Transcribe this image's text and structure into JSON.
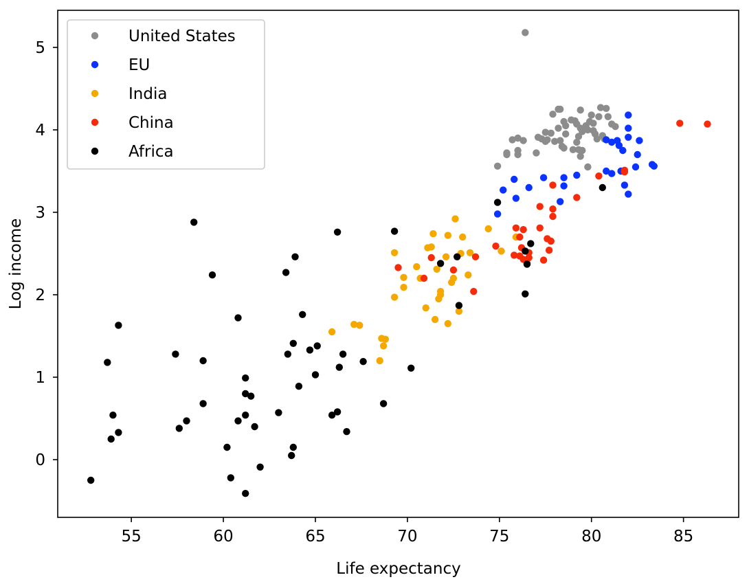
{
  "chart_data": {
    "type": "scatter",
    "title": "",
    "xlabel": "Life expectancy",
    "ylabel": "Log income",
    "xlim": [
      51,
      88
    ],
    "ylim": [
      -0.7,
      5.45
    ],
    "xticks": [
      55,
      60,
      65,
      70,
      75,
      80,
      85
    ],
    "yticks": [
      0,
      1,
      2,
      3,
      4,
      5
    ],
    "grid": false,
    "legend_position": "top-left",
    "series": [
      {
        "name": "United States",
        "color": "#8c8c8c",
        "points": [
          [
            76.4,
            5.18
          ],
          [
            80.5,
            4.27
          ],
          [
            80.8,
            4.26
          ],
          [
            78.2,
            4.25
          ],
          [
            78.3,
            4.25
          ],
          [
            79.4,
            4.24
          ],
          [
            77.9,
            4.19
          ],
          [
            80.0,
            4.18
          ],
          [
            80.4,
            4.16
          ],
          [
            80.9,
            4.16
          ],
          [
            78.9,
            4.12
          ],
          [
            79.1,
            4.11
          ],
          [
            78.5,
            4.1
          ],
          [
            79.9,
            4.1
          ],
          [
            80.1,
            4.08
          ],
          [
            81.1,
            4.07
          ],
          [
            79.2,
            4.07
          ],
          [
            78.6,
            4.05
          ],
          [
            79.7,
            4.05
          ],
          [
            81.3,
            4.04
          ],
          [
            79.4,
            4.02
          ],
          [
            78.2,
            4.02
          ],
          [
            79.8,
            4.0
          ],
          [
            80.1,
            3.99
          ],
          [
            79.5,
            3.98
          ],
          [
            77.5,
            3.97
          ],
          [
            77.8,
            3.96
          ],
          [
            78.6,
            3.95
          ],
          [
            80.2,
            3.95
          ],
          [
            80.6,
            3.93
          ],
          [
            79.3,
            3.92
          ],
          [
            77.1,
            3.91
          ],
          [
            76.0,
            3.9
          ],
          [
            77.3,
            3.89
          ],
          [
            77.6,
            3.88
          ],
          [
            80.3,
            3.89
          ],
          [
            80.7,
            3.89
          ],
          [
            75.7,
            3.88
          ],
          [
            76.3,
            3.87
          ],
          [
            78.3,
            3.87
          ],
          [
            78.0,
            3.86
          ],
          [
            77.5,
            3.86
          ],
          [
            79.2,
            3.85
          ],
          [
            78.4,
            3.8
          ],
          [
            78.5,
            3.78
          ],
          [
            79.0,
            3.76
          ],
          [
            79.3,
            3.76
          ],
          [
            76.0,
            3.75
          ],
          [
            79.5,
            3.75
          ],
          [
            75.4,
            3.72
          ],
          [
            75.4,
            3.7
          ],
          [
            76.0,
            3.7
          ],
          [
            77.0,
            3.72
          ],
          [
            79.4,
            3.68
          ],
          [
            74.9,
            3.56
          ],
          [
            79.8,
            3.55
          ]
        ]
      },
      {
        "name": "EU",
        "color": "#0a33ff",
        "points": [
          [
            82.0,
            4.18
          ],
          [
            82.0,
            4.02
          ],
          [
            82.0,
            3.91
          ],
          [
            81.4,
            3.87
          ],
          [
            80.8,
            3.88
          ],
          [
            81.1,
            3.85
          ],
          [
            82.6,
            3.87
          ],
          [
            81.5,
            3.81
          ],
          [
            81.7,
            3.75
          ],
          [
            82.5,
            3.7
          ],
          [
            83.3,
            3.58
          ],
          [
            83.4,
            3.56
          ],
          [
            82.4,
            3.55
          ],
          [
            80.8,
            3.5
          ],
          [
            81.1,
            3.47
          ],
          [
            81.6,
            3.5
          ],
          [
            79.2,
            3.45
          ],
          [
            77.4,
            3.42
          ],
          [
            78.5,
            3.42
          ],
          [
            75.8,
            3.4
          ],
          [
            78.5,
            3.32
          ],
          [
            76.6,
            3.3
          ],
          [
            81.8,
            3.33
          ],
          [
            75.2,
            3.27
          ],
          [
            75.9,
            3.17
          ],
          [
            78.3,
            3.13
          ],
          [
            82.0,
            3.22
          ],
          [
            74.9,
            2.98
          ]
        ]
      },
      {
        "name": "India",
        "color": "#f5a800",
        "points": [
          [
            72.6,
            2.92
          ],
          [
            74.4,
            2.8
          ],
          [
            71.4,
            2.74
          ],
          [
            72.2,
            2.72
          ],
          [
            73.0,
            2.7
          ],
          [
            75.9,
            2.7
          ],
          [
            71.3,
            2.58
          ],
          [
            71.1,
            2.57
          ],
          [
            69.3,
            2.51
          ],
          [
            73.4,
            2.51
          ],
          [
            72.9,
            2.5
          ],
          [
            72.1,
            2.46
          ],
          [
            75.1,
            2.53
          ],
          [
            70.5,
            2.34
          ],
          [
            71.6,
            2.31
          ],
          [
            73.3,
            2.24
          ],
          [
            69.8,
            2.21
          ],
          [
            70.7,
            2.2
          ],
          [
            72.5,
            2.2
          ],
          [
            72.4,
            2.15
          ],
          [
            69.8,
            2.09
          ],
          [
            71.8,
            2.04
          ],
          [
            71.8,
            2.0
          ],
          [
            69.3,
            1.97
          ],
          [
            71.7,
            1.95
          ],
          [
            71.0,
            1.84
          ],
          [
            72.8,
            1.8
          ],
          [
            71.5,
            1.7
          ],
          [
            72.2,
            1.65
          ],
          [
            67.1,
            1.64
          ],
          [
            67.4,
            1.63
          ],
          [
            65.9,
            1.55
          ],
          [
            68.6,
            1.47
          ],
          [
            68.8,
            1.46
          ],
          [
            68.7,
            1.38
          ],
          [
            68.5,
            1.2
          ]
        ]
      },
      {
        "name": "China",
        "color": "#f52b0a",
        "points": [
          [
            84.8,
            4.08
          ],
          [
            86.3,
            4.07
          ],
          [
            81.8,
            3.51
          ],
          [
            81.8,
            3.49
          ],
          [
            80.4,
            3.44
          ],
          [
            77.9,
            3.33
          ],
          [
            79.2,
            3.18
          ],
          [
            77.2,
            3.07
          ],
          [
            77.9,
            3.04
          ],
          [
            77.9,
            2.95
          ],
          [
            75.9,
            2.81
          ],
          [
            77.2,
            2.81
          ],
          [
            76.3,
            2.79
          ],
          [
            76.1,
            2.7
          ],
          [
            77.6,
            2.68
          ],
          [
            77.8,
            2.65
          ],
          [
            74.8,
            2.59
          ],
          [
            76.2,
            2.57
          ],
          [
            76.6,
            2.51
          ],
          [
            75.8,
            2.48
          ],
          [
            77.7,
            2.54
          ],
          [
            76.1,
            2.47
          ],
          [
            73.7,
            2.46
          ],
          [
            71.3,
            2.45
          ],
          [
            76.6,
            2.45
          ],
          [
            76.3,
            2.43
          ],
          [
            77.4,
            2.42
          ],
          [
            76.5,
            2.38
          ],
          [
            69.5,
            2.33
          ],
          [
            72.5,
            2.3
          ],
          [
            70.9,
            2.2
          ],
          [
            73.6,
            2.04
          ]
        ]
      },
      {
        "name": "Africa",
        "color": "#000000",
        "points": [
          [
            58.4,
            2.88
          ],
          [
            66.2,
            2.76
          ],
          [
            69.3,
            2.77
          ],
          [
            63.9,
            2.46
          ],
          [
            59.4,
            2.24
          ],
          [
            63.4,
            2.27
          ],
          [
            64.3,
            1.76
          ],
          [
            60.8,
            1.72
          ],
          [
            54.3,
            1.63
          ],
          [
            72.7,
            2.46
          ],
          [
            71.8,
            2.38
          ],
          [
            74.9,
            3.12
          ],
          [
            80.6,
            3.3
          ],
          [
            76.4,
            2.53
          ],
          [
            76.7,
            2.62
          ],
          [
            76.5,
            2.37
          ],
          [
            76.4,
            2.01
          ],
          [
            72.8,
            1.87
          ],
          [
            63.8,
            1.41
          ],
          [
            65.1,
            1.38
          ],
          [
            64.7,
            1.33
          ],
          [
            66.5,
            1.28
          ],
          [
            63.5,
            1.28
          ],
          [
            57.4,
            1.28
          ],
          [
            58.9,
            1.2
          ],
          [
            53.7,
            1.18
          ],
          [
            67.6,
            1.19
          ],
          [
            66.3,
            1.12
          ],
          [
            70.2,
            1.11
          ],
          [
            65.0,
            1.03
          ],
          [
            61.2,
            0.99
          ],
          [
            64.1,
            0.89
          ],
          [
            61.2,
            0.8
          ],
          [
            61.5,
            0.77
          ],
          [
            58.9,
            0.68
          ],
          [
            68.7,
            0.68
          ],
          [
            63.0,
            0.57
          ],
          [
            66.2,
            0.58
          ],
          [
            54.0,
            0.54
          ],
          [
            61.2,
            0.54
          ],
          [
            65.9,
            0.54
          ],
          [
            58.0,
            0.47
          ],
          [
            60.8,
            0.47
          ],
          [
            61.7,
            0.4
          ],
          [
            57.6,
            0.38
          ],
          [
            66.7,
            0.34
          ],
          [
            54.3,
            0.33
          ],
          [
            53.9,
            0.25
          ],
          [
            63.8,
            0.15
          ],
          [
            60.2,
            0.15
          ],
          [
            63.7,
            0.05
          ],
          [
            62.0,
            -0.09
          ],
          [
            60.4,
            -0.22
          ],
          [
            52.8,
            -0.25
          ],
          [
            61.2,
            -0.41
          ]
        ]
      }
    ]
  }
}
